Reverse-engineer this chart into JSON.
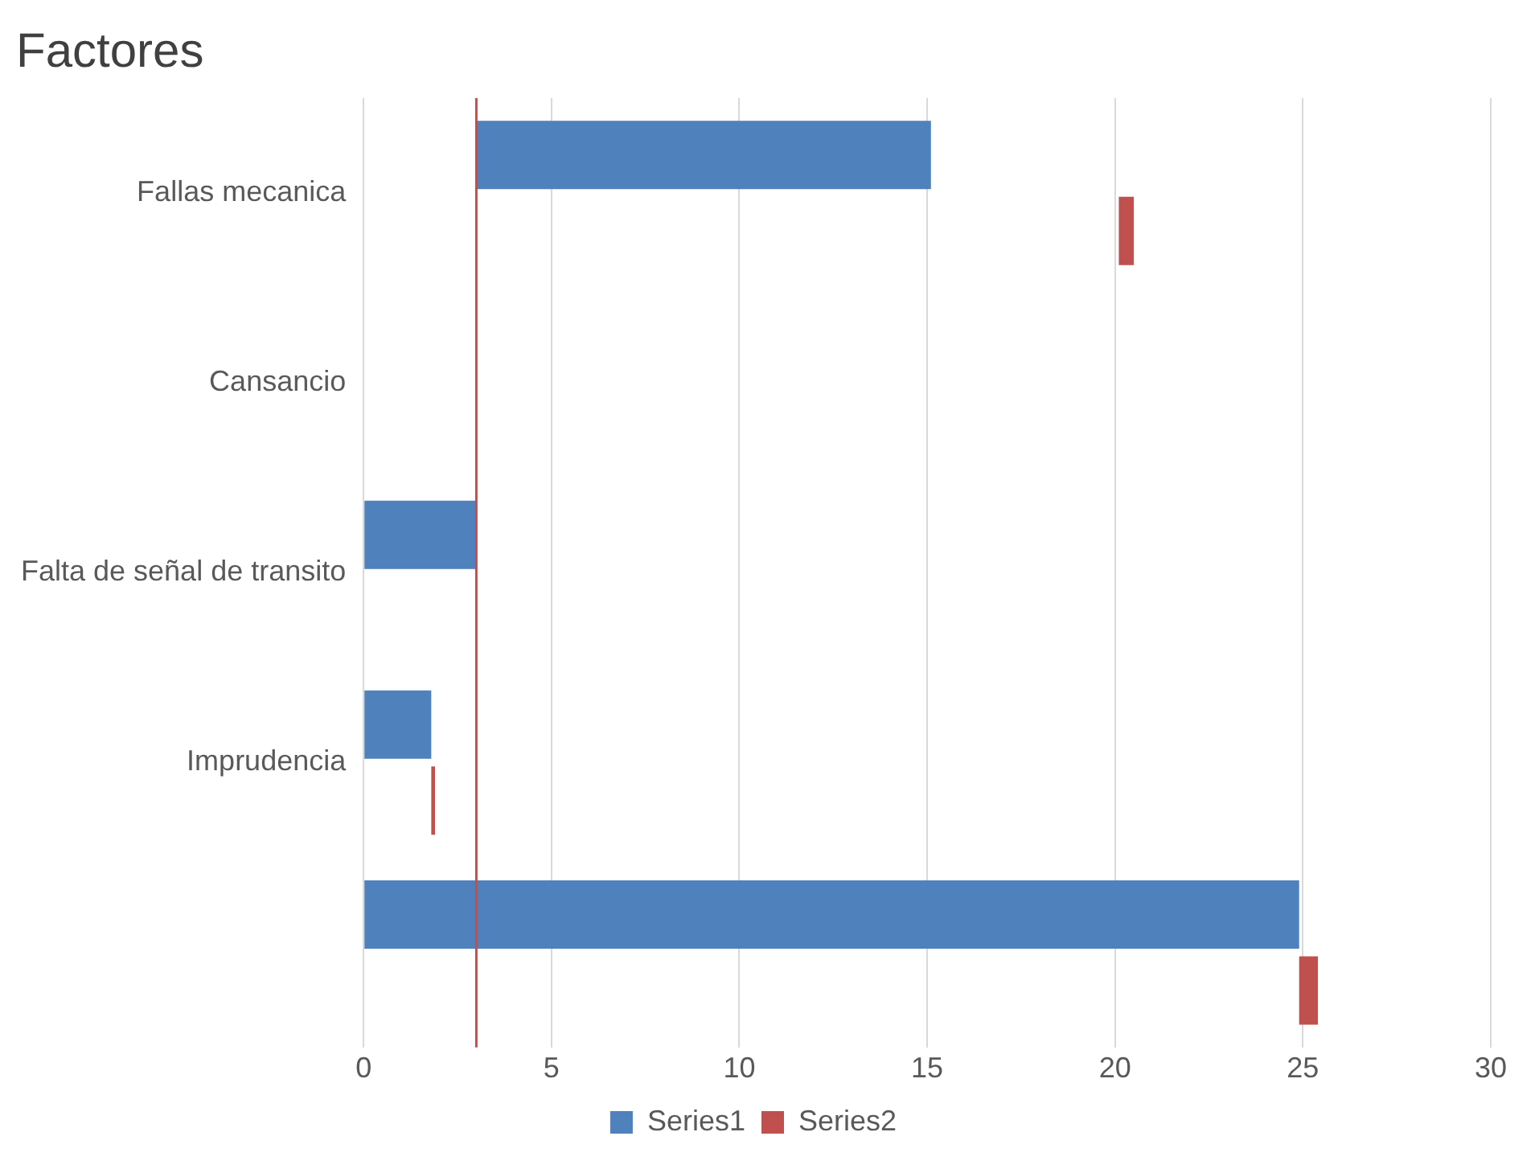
{
  "chart_data": {
    "type": "bar",
    "orientation": "horizontal",
    "title": "Factores",
    "categories": [
      "Fallas mecanica",
      "Cansancio",
      "Falta de señal de transito",
      "Imprudencia",
      null
    ],
    "series": [
      {
        "name": "Series1",
        "color": "#4f81bd",
        "base": [
          3,
          null,
          0,
          0,
          0
        ],
        "values": [
          12.1,
          null,
          3,
          1.8,
          24.9
        ]
      },
      {
        "name": "Series2",
        "color": "#c0504d",
        "base": [
          20.1,
          null,
          null,
          1.8,
          24.9
        ],
        "values": [
          0.4,
          null,
          null,
          0.1,
          0.5
        ]
      }
    ],
    "xlim": [
      0,
      30
    ],
    "xticks": [
      0,
      5,
      10,
      15,
      20,
      25,
      30
    ],
    "grid": "x",
    "legend": "bottom",
    "ref_lines": [
      {
        "axis": "x",
        "value": 3,
        "color": "#c0504d"
      }
    ]
  }
}
